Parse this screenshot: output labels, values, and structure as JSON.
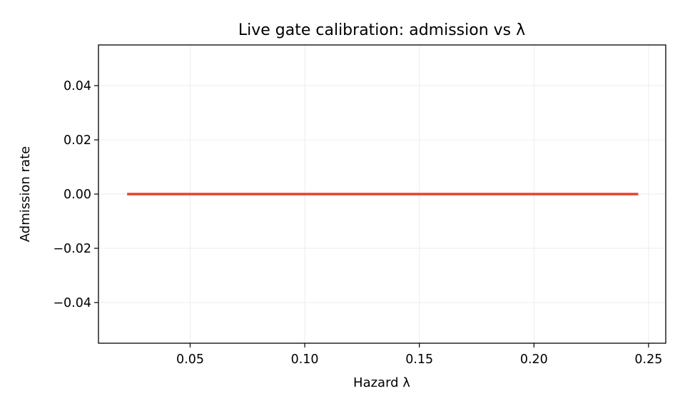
{
  "chart_data": {
    "type": "line",
    "title": "Live gate calibration: admission vs λ",
    "xlabel": "Hazard λ",
    "ylabel": "Admission rate",
    "xlim": [
      0.01,
      0.2575
    ],
    "ylim": [
      -0.055,
      0.055
    ],
    "xticks": [
      0.05,
      0.1,
      0.15,
      0.2,
      0.25
    ],
    "xtick_labels": [
      "0.05",
      "0.10",
      "0.15",
      "0.20",
      "0.25"
    ],
    "yticks": [
      -0.04,
      -0.02,
      0.0,
      0.02,
      0.04
    ],
    "ytick_labels": [
      "−0.04",
      "−0.02",
      "0.00",
      "0.02",
      "0.04"
    ],
    "grid": true,
    "series": [
      {
        "color": "#e8412d",
        "x": [
          0.0225,
          0.05,
          0.075,
          0.1,
          0.125,
          0.15,
          0.175,
          0.2,
          0.225,
          0.2455
        ],
        "y": [
          0,
          0,
          0,
          0,
          0,
          0,
          0,
          0,
          0,
          0
        ]
      }
    ]
  }
}
